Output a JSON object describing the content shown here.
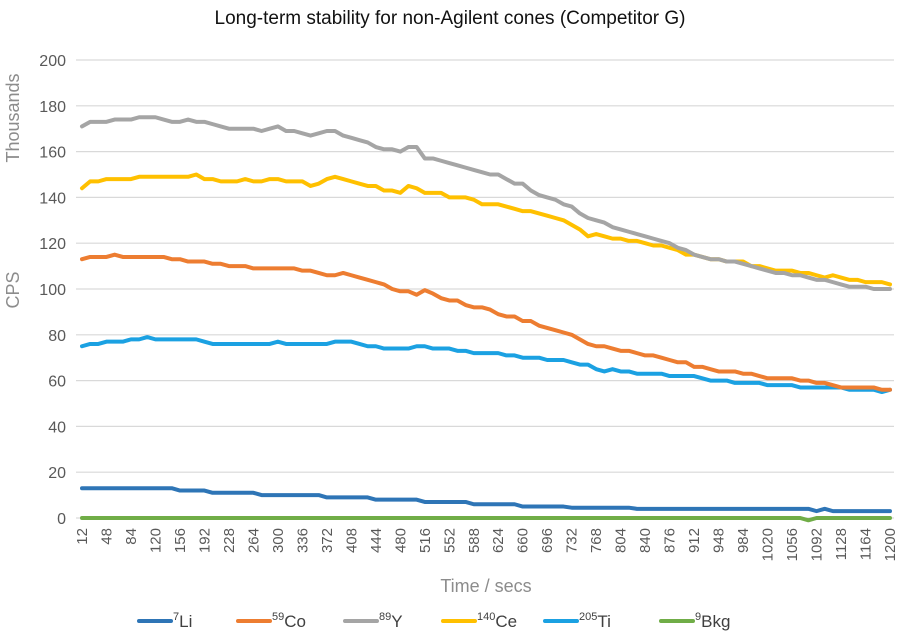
{
  "chart_data": {
    "type": "line",
    "title": "Long-term stability for non-Agilent cones (Competitor G)",
    "xlabel": "Time / secs",
    "ylabel": "CPS",
    "y_units_label": "Thousands",
    "ylim": [
      0,
      200
    ],
    "yticks": [
      0,
      20,
      40,
      60,
      80,
      100,
      120,
      140,
      160,
      180,
      200
    ],
    "grid": true,
    "legend_position": "bottom",
    "x_start": 12,
    "x_step": 12,
    "x_count": 100,
    "xtick_labels": [
      "12",
      "48",
      "84",
      "120",
      "156",
      "192",
      "228",
      "264",
      "300",
      "336",
      "372",
      "408",
      "444",
      "480",
      "516",
      "552",
      "588",
      "624",
      "660",
      "696",
      "732",
      "768",
      "804",
      "840",
      "876",
      "912",
      "948",
      "984",
      "1020",
      "1056",
      "1092",
      "1128",
      "1164",
      "1200"
    ],
    "series": [
      {
        "name": "Li",
        "mass": "7",
        "color": "#2e75b6",
        "values": [
          13,
          13,
          13,
          13,
          13,
          13,
          13,
          13,
          13,
          13,
          13,
          13,
          12,
          12,
          12,
          12,
          11,
          11,
          11,
          11,
          11,
          11,
          10,
          10,
          10,
          10,
          10,
          10,
          10,
          10,
          9,
          9,
          9,
          9,
          9,
          9,
          8,
          8,
          8,
          8,
          8,
          8,
          7,
          7,
          7,
          7,
          7,
          7,
          6,
          6,
          6,
          6,
          6,
          6,
          5,
          5,
          5,
          5,
          5,
          5,
          4.5,
          4.5,
          4.5,
          4.5,
          4.5,
          4.5,
          4.5,
          4.5,
          4,
          4,
          4,
          4,
          4,
          4,
          4,
          4,
          4,
          4,
          4,
          4,
          4,
          4,
          4,
          4,
          4,
          4,
          4,
          4,
          4,
          4,
          3,
          4,
          3,
          3,
          3,
          3,
          3,
          3,
          3,
          3
        ]
      },
      {
        "name": "Co",
        "mass": "59",
        "color": "#ed7d31",
        "values": [
          113,
          114,
          114,
          114,
          115,
          114,
          114,
          114,
          114,
          114,
          114,
          113,
          113,
          112,
          112,
          112,
          111,
          111,
          110,
          110,
          110,
          109,
          109,
          109,
          109,
          109,
          109,
          108,
          108,
          107,
          106,
          106,
          107,
          106,
          105,
          104,
          103,
          102,
          100,
          99,
          99,
          97.5,
          99.5,
          98,
          96,
          95,
          95,
          93,
          92,
          92,
          91,
          89,
          88,
          88,
          86,
          86,
          84,
          83,
          82,
          81,
          80,
          78,
          76,
          75,
          75,
          74,
          73,
          73,
          72,
          71,
          71,
          70,
          69,
          68,
          68,
          66,
          66,
          65,
          64,
          64,
          64,
          63,
          63,
          62,
          61,
          61,
          61,
          61,
          60,
          60,
          59,
          59,
          58,
          57,
          57,
          57,
          57,
          57,
          56,
          56
        ]
      },
      {
        "name": "Y",
        "mass": "89",
        "color": "#a5a5a5",
        "values": [
          171,
          173,
          173,
          173,
          174,
          174,
          174,
          175,
          175,
          175,
          174,
          173,
          173,
          174,
          173,
          173,
          172,
          171,
          170,
          170,
          170,
          170,
          169,
          170,
          171,
          169,
          169,
          168,
          167,
          168,
          169,
          169,
          167,
          166,
          165,
          164,
          162,
          161,
          161,
          160,
          162,
          162,
          157,
          157,
          156,
          155,
          154,
          153,
          152,
          151,
          150,
          150,
          148,
          146,
          146,
          143,
          141,
          140,
          139,
          137,
          136,
          133,
          131,
          130,
          129,
          127,
          126,
          125,
          124,
          123,
          122,
          121,
          120,
          118,
          117,
          115,
          114,
          113,
          113,
          112,
          112,
          111,
          110,
          109,
          108,
          107,
          107,
          106,
          106,
          105,
          104,
          104,
          103,
          102,
          101,
          101,
          101,
          100,
          100,
          100
        ]
      },
      {
        "name": "Ce",
        "mass": "140",
        "color": "#ffc000",
        "values": [
          144,
          147,
          147,
          148,
          148,
          148,
          148,
          149,
          149,
          149,
          149,
          149,
          149,
          149,
          150,
          148,
          148,
          147,
          147,
          147,
          148,
          147,
          147,
          148,
          148,
          147,
          147,
          147,
          145,
          146,
          148,
          149,
          148,
          147,
          146,
          145,
          145,
          143,
          143,
          142,
          145,
          144,
          142,
          142,
          142,
          140,
          140,
          140,
          139,
          137,
          137,
          137,
          136,
          135,
          134,
          134,
          133,
          132,
          131,
          130,
          128,
          126,
          123,
          124,
          123,
          122,
          122,
          121,
          121,
          120,
          119,
          119,
          118,
          117,
          115,
          115,
          114,
          113,
          113,
          112,
          112,
          112,
          110,
          110,
          109,
          108,
          108,
          108,
          107,
          107,
          106,
          105,
          106,
          105,
          104,
          104,
          103,
          103,
          103,
          102
        ]
      },
      {
        "name": "Ti",
        "mass": "205",
        "color": "#1ba1e2",
        "values": [
          75,
          76,
          76,
          77,
          77,
          77,
          78,
          78,
          79,
          78,
          78,
          78,
          78,
          78,
          78,
          77,
          76,
          76,
          76,
          76,
          76,
          76,
          76,
          76,
          77,
          76,
          76,
          76,
          76,
          76,
          76,
          77,
          77,
          77,
          76,
          75,
          75,
          74,
          74,
          74,
          74,
          75,
          75,
          74,
          74,
          74,
          73,
          73,
          72,
          72,
          72,
          72,
          71,
          71,
          70,
          70,
          70,
          69,
          69,
          69,
          68,
          67,
          67,
          65,
          64,
          65,
          64,
          64,
          63,
          63,
          63,
          63,
          62,
          62,
          62,
          62,
          61,
          60,
          60,
          60,
          59,
          59,
          59,
          59,
          58,
          58,
          58,
          58,
          57,
          57,
          57,
          57,
          57,
          57,
          56,
          56,
          56,
          56,
          55,
          56
        ]
      },
      {
        "name": "Bkg",
        "mass": "9",
        "color": "#70ad47",
        "values": [
          0,
          0,
          0,
          0,
          0,
          0,
          0,
          0,
          0,
          0,
          0,
          0,
          0,
          0,
          0,
          0,
          0,
          0,
          0,
          0,
          0,
          0,
          0,
          0,
          0,
          0,
          0,
          0,
          0,
          0,
          0,
          0,
          0,
          0,
          0,
          0,
          0,
          0,
          0,
          0,
          0,
          0,
          0,
          0,
          0,
          0,
          0,
          0,
          0,
          0,
          0,
          0,
          0,
          0,
          0,
          0,
          0,
          0,
          0,
          0,
          0,
          0,
          0,
          0,
          0,
          0,
          0,
          0,
          0,
          0,
          0,
          0,
          0,
          0,
          0,
          0,
          0,
          0,
          0,
          0,
          0,
          0,
          0,
          0,
          0,
          0,
          0,
          0,
          0,
          -1,
          0,
          0,
          0,
          0,
          0,
          0,
          0,
          0,
          0,
          0
        ]
      }
    ]
  }
}
